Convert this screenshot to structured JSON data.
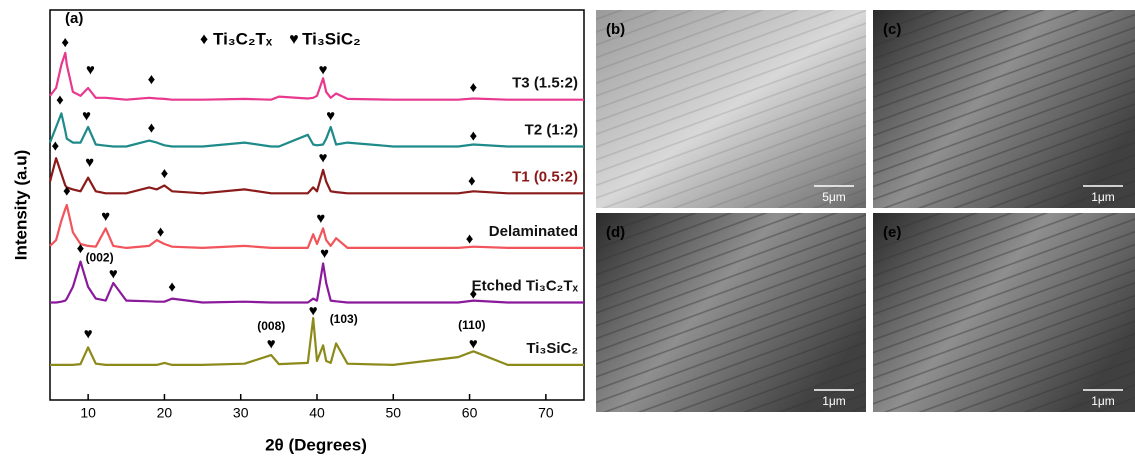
{
  "chart_data": {
    "type": "line",
    "panel_label": "(a)",
    "x_label": "2θ (Degrees)",
    "y_label": "Intensity (a.u)",
    "xlim": [
      5,
      75
    ],
    "xticks": [
      10,
      20,
      30,
      40,
      50,
      60,
      70
    ],
    "ylim": [
      0,
      100
    ],
    "legend": [
      {
        "symbol": "♦",
        "name": "Ti₃C₂Tₓ"
      },
      {
        "symbol": "♥",
        "name": "Ti₃SiC₂"
      }
    ],
    "x": [
      5,
      5.8,
      6.5,
      7,
      7.2,
      8,
      9,
      10,
      11,
      12.3,
      13.3,
      15,
      18,
      19,
      20,
      21,
      25,
      30.5,
      34,
      35,
      38.8,
      39.5,
      40,
      40.8,
      41.2,
      41.8,
      42.5,
      44,
      50,
      58.5,
      60.5,
      65,
      75
    ],
    "series": [
      {
        "name": "T3 (1.5:2)",
        "color": "#e8398f",
        "label_color": "#111111",
        "values": [
          78,
          80,
          86,
          89,
          86,
          79,
          78,
          80,
          77.5,
          77.5,
          77.3,
          77,
          77.5,
          77.3,
          77.2,
          77,
          77,
          77.2,
          77,
          77.8,
          77.3,
          77.5,
          78,
          82.5,
          79,
          77.5,
          78.6,
          77.2,
          77,
          77,
          77.3,
          77,
          77
        ]
      },
      {
        "name": "T2 (1:2)",
        "color": "#1f8a8a",
        "label_color": "#111111",
        "values": [
          66,
          70,
          73.5,
          69,
          67,
          66,
          66,
          70,
          65.5,
          65.2,
          65,
          65,
          66.5,
          66,
          65.3,
          65,
          65,
          66,
          65,
          65,
          68,
          65.5,
          65.3,
          65.5,
          67,
          70,
          65.5,
          66,
          65,
          65,
          65.5,
          65,
          65
        ]
      },
      {
        "name": "T1 (0.5:2)",
        "color": "#8b1a1a",
        "label_color": "#8b1a1a",
        "values": [
          56,
          62,
          58,
          55,
          54.5,
          54,
          53.5,
          57,
          53.5,
          53,
          53,
          53,
          54.5,
          54,
          55,
          53.5,
          53,
          54,
          53,
          53,
          53,
          54.5,
          53.5,
          59,
          56,
          53.5,
          53.3,
          53,
          53,
          53,
          53.5,
          53,
          53
        ]
      },
      {
        "name": "Delaminated",
        "color": "#f2545b",
        "label_color": "#111111",
        "values": [
          39.5,
          41,
          46,
          49,
          50,
          43,
          40,
          39.5,
          39.3,
          44,
          39.5,
          39,
          39.5,
          41,
          40,
          39.3,
          39,
          39.5,
          39,
          39,
          39,
          42.5,
          40,
          44,
          41,
          39.5,
          41.5,
          39,
          39,
          39,
          39.3,
          39,
          39
        ]
      },
      {
        "name": "Etched Ti₃C₂Tₓ",
        "color": "#8a1a9b",
        "label_color": "#111111",
        "values": [
          25,
          25,
          25.2,
          25.5,
          26,
          29,
          35.5,
          29,
          26,
          25.5,
          30,
          25.5,
          25.3,
          25.2,
          25.2,
          26,
          25,
          25.2,
          25,
          25,
          25,
          26,
          25.5,
          35,
          30,
          25.5,
          25.3,
          25,
          25,
          25,
          25.5,
          25,
          25
        ]
      },
      {
        "name": "Ti₃SiC₂",
        "color": "#8c8a1a",
        "label_color": "#111111",
        "values": [
          9,
          9,
          9,
          9,
          9,
          9,
          9.2,
          13.5,
          9.3,
          9,
          9,
          9,
          9,
          9,
          9.5,
          9,
          9,
          9.3,
          11.5,
          9.2,
          9.5,
          21,
          10,
          14,
          10,
          9.5,
          14.5,
          9.3,
          9,
          11,
          12.5,
          9,
          9
        ]
      }
    ],
    "annotations": [
      {
        "x": 7,
        "y": 91.5,
        "text": "♦"
      },
      {
        "x": 10.3,
        "y": 84.5,
        "text": "♥"
      },
      {
        "x": 18.3,
        "y": 82,
        "text": "♦"
      },
      {
        "x": 40.8,
        "y": 84.5,
        "text": "♥"
      },
      {
        "x": 60.5,
        "y": 80,
        "text": "♦"
      },
      {
        "x": 6.3,
        "y": 76.8,
        "text": "♦"
      },
      {
        "x": 9.8,
        "y": 72.7,
        "text": "♥"
      },
      {
        "x": 18.3,
        "y": 69.6,
        "text": "♦"
      },
      {
        "x": 41.8,
        "y": 72.7,
        "text": "♥"
      },
      {
        "x": 60.5,
        "y": 67.5,
        "text": "♦"
      },
      {
        "x": 5.7,
        "y": 65,
        "text": "♦"
      },
      {
        "x": 10.2,
        "y": 60.8,
        "text": "♥"
      },
      {
        "x": 20,
        "y": 58,
        "text": "♦"
      },
      {
        "x": 40.8,
        "y": 61.9,
        "text": "♥"
      },
      {
        "x": 60.3,
        "y": 56,
        "text": "♦"
      },
      {
        "x": 7.2,
        "y": 53.4,
        "text": "♦"
      },
      {
        "x": 12.3,
        "y": 46.9,
        "text": "♥"
      },
      {
        "x": 19.5,
        "y": 43,
        "text": "♦"
      },
      {
        "x": 40.5,
        "y": 46.4,
        "text": "♥"
      },
      {
        "x": 60,
        "y": 41.2,
        "text": "♦"
      },
      {
        "x": 9,
        "y": 38.7,
        "text": "♦"
      },
      {
        "x": 11.5,
        "y": 36.3,
        "text": "(002)"
      },
      {
        "x": 13.3,
        "y": 32.2,
        "text": "♥"
      },
      {
        "x": 21,
        "y": 28.9,
        "text": "♦"
      },
      {
        "x": 41,
        "y": 37.4,
        "text": "♥"
      },
      {
        "x": 60.5,
        "y": 27,
        "text": "♦"
      },
      {
        "x": 10,
        "y": 16.8,
        "text": "♥"
      },
      {
        "x": 34,
        "y": 18.8,
        "text": "(008)"
      },
      {
        "x": 34,
        "y": 14.2,
        "text": "♥"
      },
      {
        "x": 39.5,
        "y": 22.7,
        "text": "♥"
      },
      {
        "x": 43.5,
        "y": 20.6,
        "text": "(103)"
      },
      {
        "x": 60.3,
        "y": 19,
        "text": "(110)"
      },
      {
        "x": 60.5,
        "y": 14.2,
        "text": "♥"
      }
    ]
  },
  "figure_panels": [
    {
      "label": "(b)",
      "scale": "5μm"
    },
    {
      "label": "(c)",
      "scale": "1μm"
    },
    {
      "label": "(d)",
      "scale": "1μm"
    },
    {
      "label": "(e)",
      "scale": "1μm"
    }
  ]
}
